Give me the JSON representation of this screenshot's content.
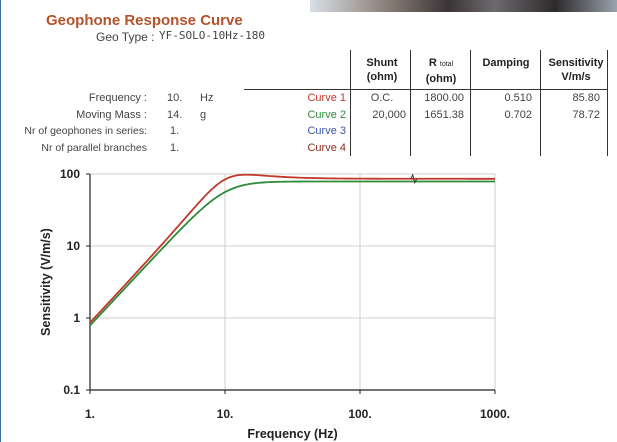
{
  "header": {
    "title": "Geophone Response Curve"
  },
  "params": {
    "geo_type_label": "Geo Type :",
    "geo_type_value": "YF-SOLO-10Hz-180",
    "rows": [
      {
        "label": "Frequency :",
        "value": "10.",
        "unit": "Hz"
      },
      {
        "label": "Moving Mass :",
        "value": "14.",
        "unit": "g"
      },
      {
        "label": "Nr of geophones in series:",
        "value": "1.",
        "unit": ""
      },
      {
        "label": "Nr of parallel branches",
        "value": "1.",
        "unit": ""
      }
    ]
  },
  "table": {
    "headers": [
      {
        "line1": "Shunt",
        "line2": "(ohm)"
      },
      {
        "line1": "R",
        "sub": "total",
        "line2": "(ohm)"
      },
      {
        "line1": "Damping",
        "line2": ""
      },
      {
        "line1": "Sensitivity",
        "line2": "V/m/s"
      }
    ],
    "rows": [
      {
        "curve": "Curve 1",
        "color": "#c0392b",
        "shunt": "O.C.",
        "rtotal": "1800.00",
        "damping": "0.510",
        "sensitivity": "85.80"
      },
      {
        "curve": "Curve 2",
        "color": "#2e8b3a",
        "shunt": "20,000",
        "rtotal": "1651.38",
        "damping": "0.702",
        "sensitivity": "78.72"
      },
      {
        "curve": "Curve 3",
        "color": "#3b57a8",
        "shunt": "",
        "rtotal": "",
        "damping": "",
        "sensitivity": ""
      },
      {
        "curve": "Curve 4",
        "color": "#8b2d1e",
        "shunt": "",
        "rtotal": "",
        "damping": "",
        "sensitivity": ""
      }
    ]
  },
  "chart_data": {
    "type": "line",
    "xscale": "log",
    "yscale": "log",
    "xlim": [
      1,
      1000
    ],
    "ylim": [
      0.1,
      100
    ],
    "x_ticks": [
      "1.",
      "10.",
      "100.",
      "1000."
    ],
    "y_ticks": [
      "0.1",
      "1",
      "10",
      "100"
    ],
    "xlabel": "Frequency (Hz)",
    "ylabel": "Sensitivity (V/m/s)",
    "grid": true,
    "series": [
      {
        "name": "Curve 1",
        "color": "#c0392b",
        "f0": 10,
        "damping": 0.51,
        "sensitivity": 85.8,
        "x": [
          1,
          2,
          5,
          8,
          10,
          13,
          20,
          50,
          100,
          250,
          1000
        ],
        "y": [
          0.87,
          3.53,
          26.0,
          63.0,
          84.1,
          95.8,
          92.3,
          87.0,
          86.2,
          85.9,
          85.8
        ]
      },
      {
        "name": "Curve 2",
        "color": "#2e8b3a",
        "f0": 10,
        "damping": 0.702,
        "sensitivity": 78.72,
        "x": [
          1,
          2,
          5,
          8,
          10,
          13,
          20,
          50,
          100,
          250,
          1000
        ],
        "y": [
          0.79,
          3.15,
          19.1,
          43.7,
          55.7,
          67.5,
          76.4,
          78.6,
          78.7,
          78.7,
          78.7
        ]
      }
    ]
  }
}
